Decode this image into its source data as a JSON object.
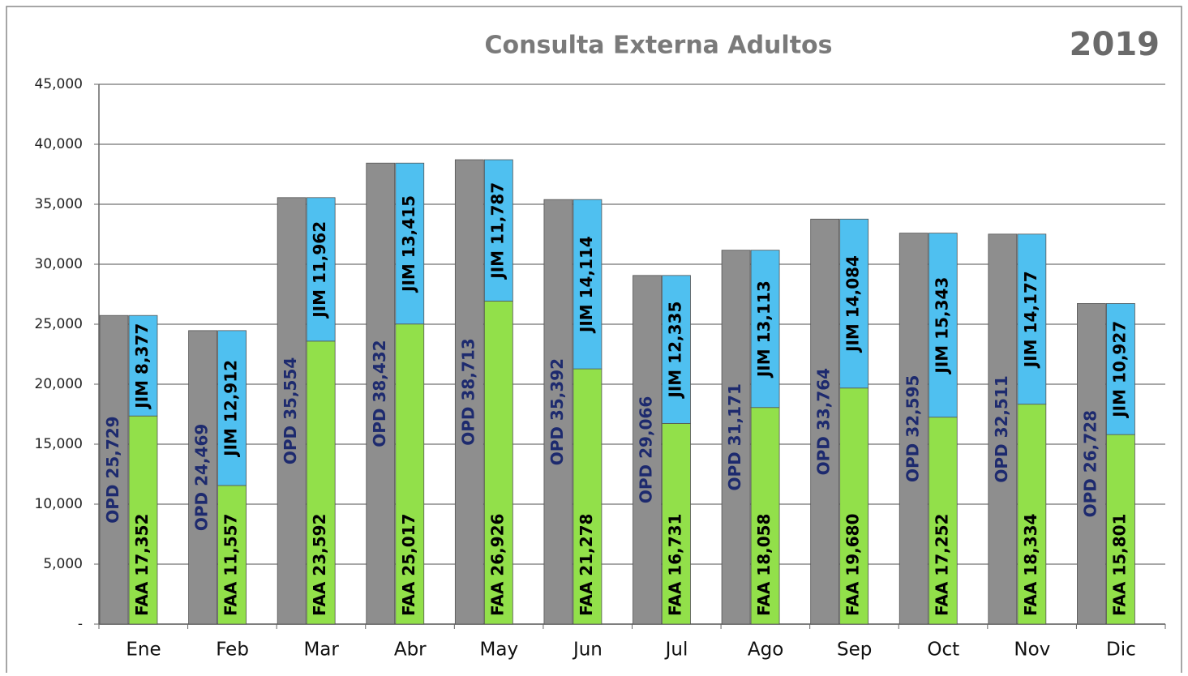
{
  "chart_data": {
    "type": "bar",
    "title": "Consulta Externa Adultos",
    "subtitle": "2019",
    "categories": [
      "Ene",
      "Feb",
      "Mar",
      "Abr",
      "May",
      "Jun",
      "Jul",
      "Ago",
      "Sep",
      "Oct",
      "Nov",
      "Dic"
    ],
    "series": [
      {
        "name": "OPD",
        "color": "#8e8e8e",
        "stack": "a",
        "values": [
          25729,
          24469,
          35554,
          38432,
          38713,
          35392,
          29066,
          31171,
          33764,
          32595,
          32511,
          26728
        ],
        "value_labels": [
          "OPD 25,729",
          "OPD 24,469",
          "OPD 35,554",
          "OPD 38,432",
          "OPD 38,713",
          "OPD 35,392",
          "OPD 29,066",
          "OPD 31,171",
          "OPD 33,764",
          "OPD 32,595",
          "OPD 32,511",
          "OPD 26,728"
        ]
      },
      {
        "name": "FAA",
        "color": "#92e04a",
        "stack": "b",
        "values": [
          17352,
          11557,
          23592,
          25017,
          26926,
          21278,
          16731,
          18058,
          19680,
          17252,
          18334,
          15801
        ],
        "value_labels": [
          "FAA 17,352",
          "FAA 11,557",
          "FAA 23,592",
          "FAA 25,017",
          "FAA 26,926",
          "FAA 21,278",
          "FAA 16,731",
          "FAA 18,058",
          "FAA 19,680",
          "FAA 17,252",
          "FAA 18,334",
          "FAA 15,801"
        ]
      },
      {
        "name": "JIM",
        "color": "#4fc0f0",
        "stack": "b",
        "values": [
          8377,
          12912,
          11962,
          13415,
          11787,
          14114,
          12335,
          13113,
          14084,
          15343,
          14177,
          10927
        ],
        "value_labels": [
          "JIM 8,377",
          "JIM 12,912",
          "JIM 11,962",
          "JIM 13,415",
          "JIM 11,787",
          "JIM 14,114",
          "JIM 12,335",
          "JIM 13,113",
          "JIM 14,084",
          "JIM 15,343",
          "JIM 14,177",
          "JIM 10,927"
        ]
      }
    ],
    "ylim": [
      0,
      45000
    ],
    "yticks": [
      {
        "value": 0,
        "label": "-"
      },
      {
        "value": 5000,
        "label": "5,000"
      },
      {
        "value": 10000,
        "label": "10,000"
      },
      {
        "value": 15000,
        "label": "15,000"
      },
      {
        "value": 20000,
        "label": "20,000"
      },
      {
        "value": 25000,
        "label": "25,000"
      },
      {
        "value": 30000,
        "label": "30,000"
      },
      {
        "value": 35000,
        "label": "35,000"
      },
      {
        "value": 40000,
        "label": "40,000"
      },
      {
        "value": 45000,
        "label": "45,000"
      }
    ],
    "grid": true
  }
}
